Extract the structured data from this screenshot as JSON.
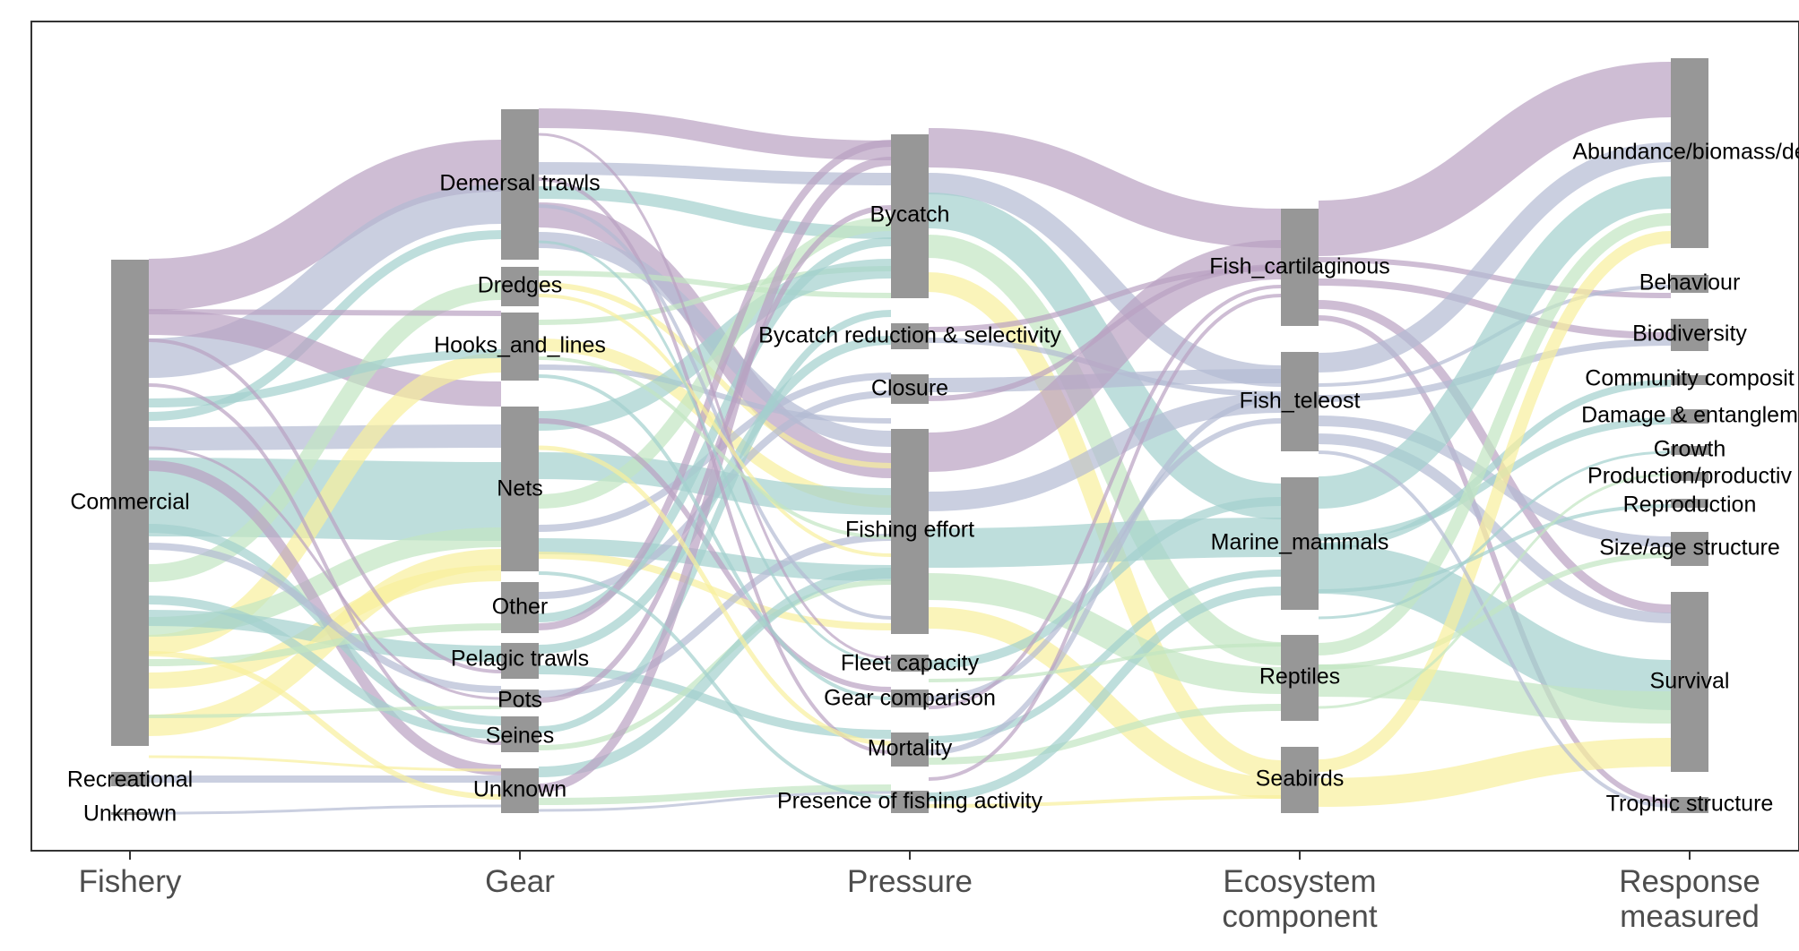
{
  "colors": {
    "node": "#979797",
    "purple": "#b9a1c2",
    "slate": "#b3bbd3",
    "teal": "#a3d0cd",
    "green": "#c2e6c2",
    "yellow": "#f8ef9c",
    "frame": "#333333",
    "axis_text": "#4d4d4d"
  },
  "axes": [
    {
      "id": "fishery",
      "lines": [
        "Fishery"
      ]
    },
    {
      "id": "gear",
      "lines": [
        "Gear"
      ]
    },
    {
      "id": "pressure",
      "lines": [
        "Pressure"
      ]
    },
    {
      "id": "ecosystem",
      "lines": [
        "Ecosystem",
        "component"
      ]
    },
    {
      "id": "response",
      "lines": [
        "Response",
        "measured"
      ]
    }
  ],
  "nodes": {
    "fishery": [
      {
        "id": "commercial",
        "label": "Commercial"
      },
      {
        "id": "recreational",
        "label": "Recreational"
      },
      {
        "id": "unknown-f",
        "label": "Unknown"
      }
    ],
    "gear": [
      {
        "id": "demersal",
        "label": "Demersal trawls"
      },
      {
        "id": "dredges",
        "label": "Dredges"
      },
      {
        "id": "hooks",
        "label": "Hooks_and_lines"
      },
      {
        "id": "nets",
        "label": "Nets"
      },
      {
        "id": "other",
        "label": "Other"
      },
      {
        "id": "pelagic",
        "label": "Pelagic trawls"
      },
      {
        "id": "pots",
        "label": "Pots"
      },
      {
        "id": "seines",
        "label": "Seines"
      },
      {
        "id": "unknown-g",
        "label": "Unknown"
      }
    ],
    "pressure": [
      {
        "id": "bycatch",
        "label": "Bycatch"
      },
      {
        "id": "bycatch-red",
        "label": "Bycatch reduction & selectivity"
      },
      {
        "id": "closure",
        "label": "Closure"
      },
      {
        "id": "effort",
        "label": "Fishing effort"
      },
      {
        "id": "fleet",
        "label": "Fleet capacity"
      },
      {
        "id": "gearcomp",
        "label": "Gear comparison"
      },
      {
        "id": "mortality",
        "label": "Mortality"
      },
      {
        "id": "presence",
        "label": "Presence of fishing activity"
      }
    ],
    "ecosystem": [
      {
        "id": "cart",
        "label": "Fish_cartilaginous"
      },
      {
        "id": "teleost",
        "label": "Fish_teleost"
      },
      {
        "id": "mammals",
        "label": "Marine_mammals"
      },
      {
        "id": "reptiles",
        "label": "Reptiles"
      },
      {
        "id": "seabirds",
        "label": "Seabirds"
      }
    ],
    "response": [
      {
        "id": "abundance",
        "label": "Abundance/biomass/de"
      },
      {
        "id": "behaviour",
        "label": "Behaviour"
      },
      {
        "id": "biodiversity",
        "label": "Biodiversity"
      },
      {
        "id": "community",
        "label": "Community composit"
      },
      {
        "id": "damage",
        "label": "Damage & entanglem"
      },
      {
        "id": "growth",
        "label": "Growth"
      },
      {
        "id": "production",
        "label": "Production/productiv"
      },
      {
        "id": "reproduction",
        "label": "Reproduction"
      },
      {
        "id": "sizeage",
        "label": "Size/age structure"
      },
      {
        "id": "survival",
        "label": "Survival"
      },
      {
        "id": "trophic",
        "label": "Trophic structure"
      }
    ]
  }
}
